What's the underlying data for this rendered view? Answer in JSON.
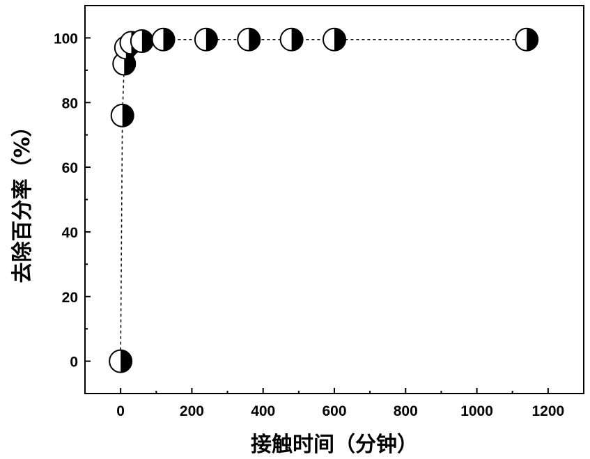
{
  "chart_data": {
    "type": "scatter",
    "xlabel": "接触时间（分钟）",
    "ylabel": "去除百分率（%）",
    "xlim": [
      -100,
      1300
    ],
    "ylim": [
      -10,
      110
    ],
    "x_ticks": [
      0,
      200,
      400,
      600,
      800,
      1000,
      1200
    ],
    "y_ticks": [
      0,
      20,
      40,
      60,
      80,
      100
    ],
    "grid": false,
    "legend": "none",
    "marker": "half-filled circle",
    "line_style": "dashed",
    "series": [
      {
        "x": [
          0,
          5,
          10,
          15,
          30,
          60,
          120,
          240,
          360,
          480,
          600,
          1140
        ],
        "y": [
          0,
          76,
          92,
          97,
          98.5,
          99,
          99.5,
          99.5,
          99.5,
          99.5,
          99.5,
          99.5
        ]
      }
    ]
  }
}
